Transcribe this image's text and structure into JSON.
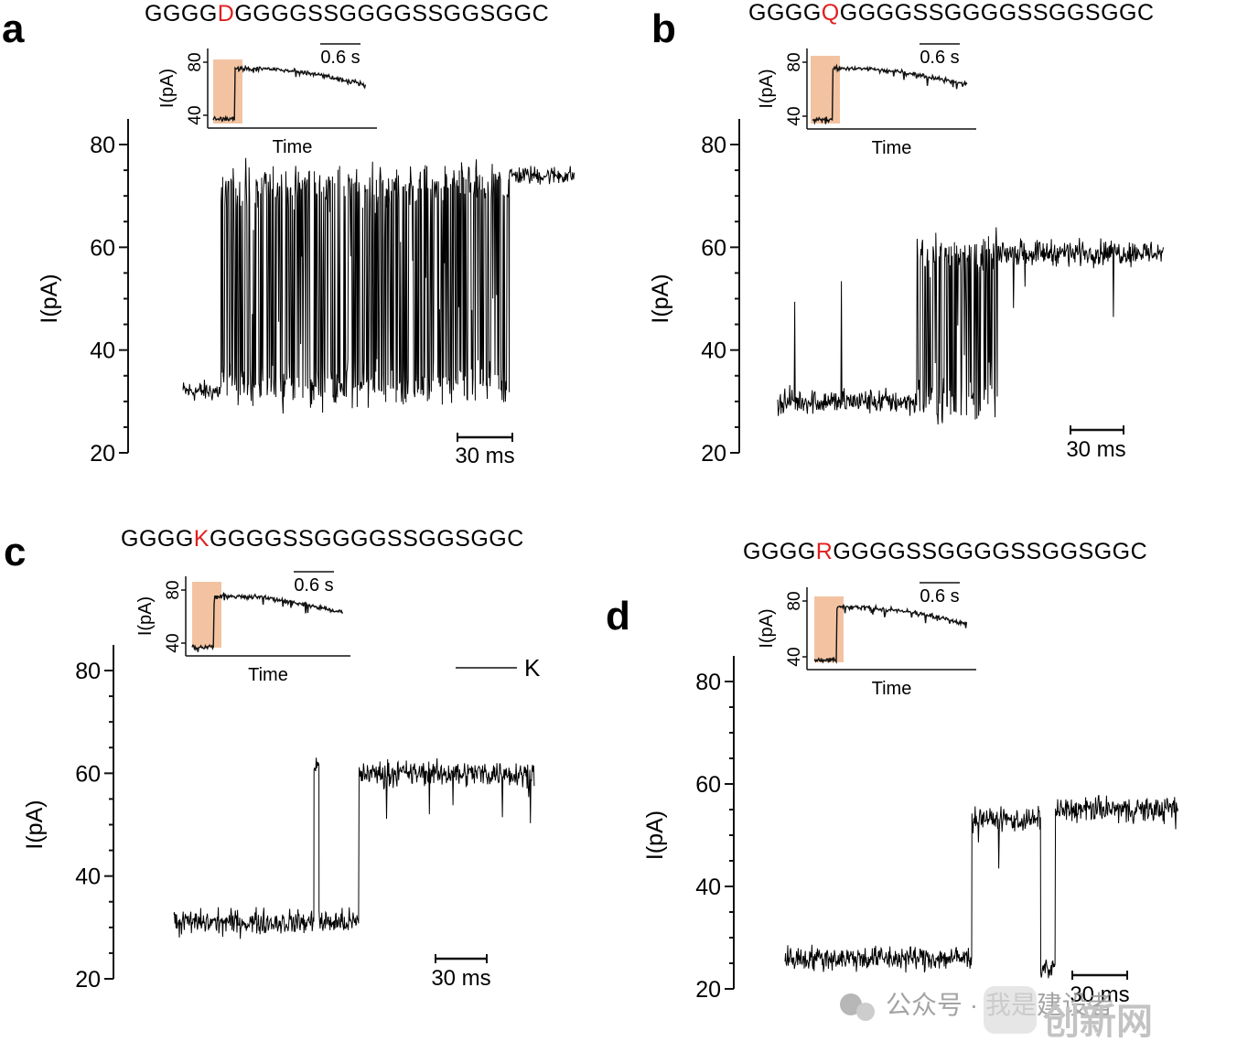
{
  "watermark": {
    "channel_text": "公众号 · 我是建设者",
    "logo_text": "创新网"
  },
  "chart_data": [
    {
      "panel": "a",
      "type": "line",
      "sequence": {
        "prefix": "GGGG",
        "mutation": "D",
        "suffix": "GGGGSSGGGGSSGGSGGC",
        "mutation_color": "#e02020"
      },
      "ylabel": "I(pA)",
      "ylim": [
        20,
        80
      ],
      "yticks": [
        20,
        40,
        60,
        80
      ],
      "scale_bar": "30 ms",
      "inset": {
        "xlabel": "Time",
        "ylabel": "I(pA)",
        "yticks": [
          40,
          80
        ],
        "scale_bar": "0.6 s",
        "highlight_color": "#f0b48a"
      },
      "trace_segments": [
        {
          "t_start": 0,
          "t_end": 7,
          "baseline_pA": 32,
          "kind": "noise",
          "noise": 2
        },
        {
          "t_start": 7,
          "t_end": 60,
          "low_pA": 33,
          "high_pA": 72,
          "kind": "gating"
        },
        {
          "t_start": 60,
          "t_end": 72,
          "baseline_pA": 74,
          "kind": "noise",
          "noise": 1.8
        }
      ]
    },
    {
      "panel": "b",
      "type": "line",
      "sequence": {
        "prefix": "GGGG",
        "mutation": "Q",
        "suffix": "GGGGSSGGGGSSGGSGGC",
        "mutation_color": "#e02020"
      },
      "ylabel": "I(pA)",
      "ylim": [
        20,
        80
      ],
      "yticks": [
        20,
        40,
        60,
        80
      ],
      "scale_bar": "30 ms",
      "inset": {
        "xlabel": "Time",
        "ylabel": "I(pA)",
        "yticks": [
          40,
          80
        ],
        "scale_bar": "0.6 s",
        "highlight_color": "#f0b48a"
      },
      "trace_segments": [
        {
          "t_start": 0,
          "t_end": 26,
          "baseline_pA": 30,
          "kind": "noise_spikes",
          "spike_pA": 58
        },
        {
          "t_start": 26,
          "t_end": 41,
          "low_pA": 30,
          "high_pA": 59,
          "kind": "gating"
        },
        {
          "t_start": 41,
          "t_end": 72,
          "baseline_pA": 59,
          "kind": "noise_downspikes",
          "spike_pA": 45
        }
      ]
    },
    {
      "panel": "c",
      "type": "line",
      "sequence": {
        "prefix": "GGGG",
        "mutation": "K",
        "suffix": "GGGGSSGGGGSSGGSGGC",
        "mutation_color": "#e02020"
      },
      "legend": [
        {
          "name": "K"
        }
      ],
      "ylabel": "I(pA)",
      "ylim": [
        20,
        80
      ],
      "yticks": [
        20,
        40,
        60,
        80
      ],
      "scale_bar": "30 ms",
      "inset": {
        "xlabel": "Time",
        "ylabel": "I(pA)",
        "yticks": [
          40,
          80
        ],
        "scale_bar": "0.6 s",
        "highlight_color": "#f0b48a"
      },
      "trace_segments": [
        {
          "t_start": 0,
          "t_end": 28,
          "baseline_pA": 31,
          "kind": "noise"
        },
        {
          "t_start": 28,
          "t_end": 29,
          "baseline_pA": 62,
          "kind": "noise"
        },
        {
          "t_start": 29,
          "t_end": 37,
          "baseline_pA": 31,
          "kind": "noise"
        },
        {
          "t_start": 37,
          "t_end": 72,
          "baseline_pA": 60,
          "kind": "noise_downspikes",
          "spike_pA": 50
        }
      ]
    },
    {
      "panel": "d",
      "type": "line",
      "sequence": {
        "prefix": "GGGG",
        "mutation": "R",
        "suffix": "GGGGSSGGGGSSGGSGGC",
        "mutation_color": "#e02020"
      },
      "ylabel": "I(pA)",
      "ylim": [
        20,
        80
      ],
      "yticks": [
        20,
        40,
        60,
        80
      ],
      "scale_bar": "30 ms",
      "inset": {
        "xlabel": "Time",
        "ylabel": "I(pA)",
        "yticks": [
          40,
          80
        ],
        "scale_bar": "0.6 s",
        "highlight_color": "#f0b48a"
      },
      "trace_segments": [
        {
          "t_start": 0,
          "t_end": 38,
          "baseline_pA": 26,
          "kind": "noise"
        },
        {
          "t_start": 38,
          "t_end": 52,
          "baseline_pA": 53,
          "kind": "noise_downspikes",
          "spike_pA": 42
        },
        {
          "t_start": 52,
          "t_end": 55,
          "baseline_pA": 24,
          "kind": "noise"
        },
        {
          "t_start": 55,
          "t_end": 80,
          "baseline_pA": 55,
          "kind": "noise_downspikes",
          "spike_pA": 45
        }
      ]
    }
  ]
}
